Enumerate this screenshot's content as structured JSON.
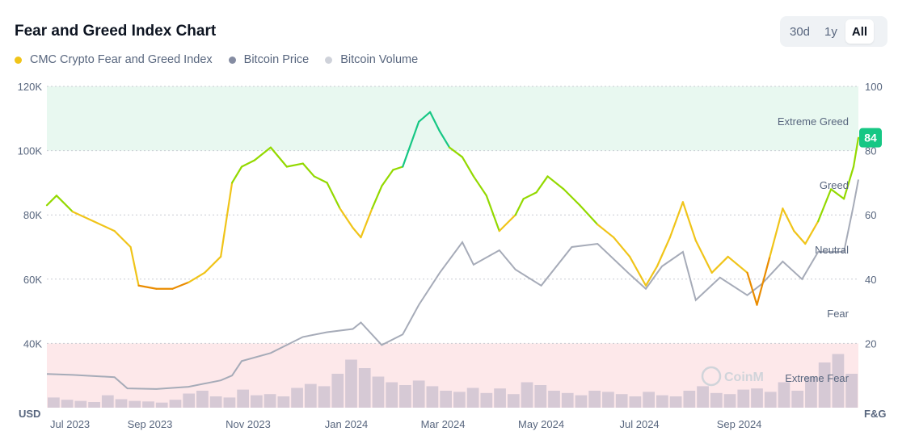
{
  "header": {
    "title": "Fear and Greed Index Chart",
    "ranges": [
      "30d",
      "1y",
      "All"
    ],
    "active_range": "All"
  },
  "legend": [
    {
      "label": "CMC Crypto Fear and Greed Index",
      "color": "#f0c419"
    },
    {
      "label": "Bitcoin Price",
      "color": "#858ca2"
    },
    {
      "label": "Bitcoin Volume",
      "color": "#cfd2da"
    }
  ],
  "watermark": "CoinM",
  "current_badge": "84",
  "chart_data": {
    "type": "line",
    "left_axis": {
      "unit": "USD",
      "ticks": [
        "120K",
        "100K",
        "80K",
        "60K",
        "40K"
      ],
      "ylim": [
        20000,
        120000
      ]
    },
    "right_axis": {
      "unit": "F&G",
      "ticks": [
        "100",
        "80",
        "60",
        "40",
        "20"
      ],
      "ylim": [
        0,
        100
      ]
    },
    "x_ticks": [
      "Jul 2023",
      "Sep 2023",
      "Nov 2023",
      "Jan 2024",
      "Mar 2024",
      "May 2024",
      "Jul 2024",
      "Sep 2024"
    ],
    "zones": [
      {
        "label": "Extreme Greed",
        "from": 80,
        "to": 100,
        "color": "#e8f8f0"
      },
      {
        "label": "Greed"
      },
      {
        "label": "Neutral"
      },
      {
        "label": "Fear"
      },
      {
        "label": "Extreme Fear",
        "from": 0,
        "to": 20,
        "color": "#fde8ea"
      }
    ],
    "colors": {
      "extreme_greed": "#16c784",
      "greed": "#93d900",
      "neutral": "#f0c419",
      "fear": "#ea8c00",
      "extreme_fear": "#ea3943",
      "price": "#a6abb8",
      "volume": "#d6c9d5"
    },
    "series": [
      {
        "name": "CMC Crypto Fear and Greed Index",
        "x": [
          "2023-06-29",
          "2023-07-05",
          "2023-07-15",
          "2023-07-28",
          "2023-08-10",
          "2023-08-20",
          "2023-08-25",
          "2023-09-05",
          "2023-09-15",
          "2023-09-25",
          "2023-10-05",
          "2023-10-15",
          "2023-10-22",
          "2023-10-28",
          "2023-11-05",
          "2023-11-15",
          "2023-11-25",
          "2023-12-05",
          "2023-12-12",
          "2023-12-20",
          "2023-12-28",
          "2024-01-05",
          "2024-01-10",
          "2024-01-17",
          "2024-01-23",
          "2024-01-30",
          "2024-02-05",
          "2024-02-15",
          "2024-02-22",
          "2024-02-28",
          "2024-03-05",
          "2024-03-13",
          "2024-03-20",
          "2024-03-28",
          "2024-04-05",
          "2024-04-15",
          "2024-04-20",
          "2024-04-28",
          "2024-05-05",
          "2024-05-15",
          "2024-05-25",
          "2024-06-05",
          "2024-06-15",
          "2024-06-25",
          "2024-07-05",
          "2024-07-12",
          "2024-07-20",
          "2024-07-28",
          "2024-08-05",
          "2024-08-15",
          "2024-08-25",
          "2024-09-06",
          "2024-09-12",
          "2024-09-20",
          "2024-09-28",
          "2024-10-05",
          "2024-10-12",
          "2024-10-20",
          "2024-10-28",
          "2024-11-05",
          "2024-11-11",
          "2024-11-14"
        ],
        "y": [
          63,
          66,
          61,
          58,
          55,
          50,
          38,
          37,
          37,
          39,
          42,
          47,
          70,
          75,
          77,
          81,
          75,
          76,
          72,
          70,
          62,
          56,
          53,
          62,
          69,
          74,
          75,
          89,
          92,
          86,
          81,
          78,
          72,
          66,
          55,
          60,
          65,
          67,
          72,
          68,
          63,
          57,
          53,
          47,
          38,
          44,
          53,
          64,
          52,
          42,
          47,
          42,
          32,
          47,
          62,
          55,
          51,
          58,
          68,
          65,
          75,
          84
        ]
      },
      {
        "name": "Bitcoin Price",
        "x": [
          "2023-06-29",
          "2023-07-15",
          "2023-08-10",
          "2023-08-18",
          "2023-09-05",
          "2023-09-25",
          "2023-10-15",
          "2023-10-22",
          "2023-10-28",
          "2023-11-15",
          "2023-12-05",
          "2023-12-20",
          "2024-01-05",
          "2024-01-10",
          "2024-01-23",
          "2024-02-05",
          "2024-02-15",
          "2024-02-28",
          "2024-03-13",
          "2024-03-20",
          "2024-04-05",
          "2024-04-15",
          "2024-05-01",
          "2024-05-20",
          "2024-06-05",
          "2024-06-25",
          "2024-07-05",
          "2024-07-15",
          "2024-07-28",
          "2024-08-05",
          "2024-08-20",
          "2024-09-06",
          "2024-09-15",
          "2024-09-28",
          "2024-10-10",
          "2024-10-20",
          "2024-11-05",
          "2024-11-11",
          "2024-11-14"
        ],
        "y": [
          30500,
          30200,
          29500,
          26000,
          25800,
          26500,
          28500,
          30000,
          34500,
          37000,
          42000,
          43500,
          44500,
          46500,
          39500,
          42800,
          52000,
          62000,
          71500,
          64500,
          69000,
          63000,
          58000,
          70000,
          71000,
          61500,
          57000,
          64000,
          68500,
          53500,
          60500,
          55000,
          58500,
          65500,
          60000,
          68500,
          68500,
          83000,
          91000
        ]
      },
      {
        "name": "Bitcoin Volume",
        "values_billions": [
          18,
          14,
          12,
          10,
          22,
          15,
          12,
          11,
          9,
          14,
          25,
          30,
          20,
          18,
          32,
          22,
          24,
          20,
          35,
          42,
          38,
          60,
          85,
          70,
          55,
          45,
          40,
          48,
          38,
          30,
          28,
          35,
          26,
          34,
          24,
          45,
          40,
          30,
          26,
          22,
          30,
          28,
          24,
          20,
          28,
          22,
          20,
          30,
          38,
          26,
          24,
          32,
          34,
          28,
          45,
          30,
          55,
          80,
          95,
          60
        ]
      }
    ]
  }
}
